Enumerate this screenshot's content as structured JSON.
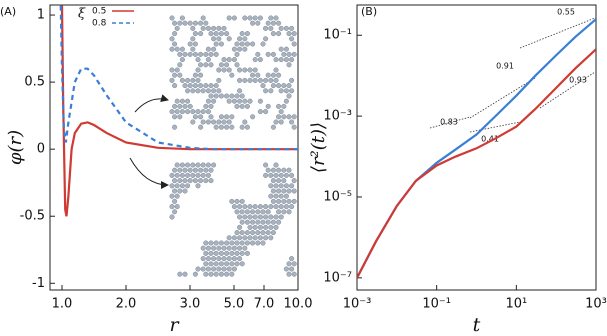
{
  "chart_data": [
    {
      "type": "line",
      "panel_label": "(A)",
      "xlabel": "r",
      "ylabel": "φ(r)",
      "legend_title": "ξ",
      "legend": "upper left",
      "xlim": [
        0.81,
        10
      ],
      "ylim": [
        -1.05,
        1.075
      ],
      "xticks": [
        {
          "value": 1,
          "label": "1.0"
        },
        {
          "value": 2,
          "label": "2.0"
        },
        {
          "value": 3,
          "label": "3.0"
        },
        {
          "value": 5,
          "label": "5.0"
        },
        {
          "value": 7,
          "label": "7.0"
        },
        {
          "value": 10,
          "label": "10.0"
        }
      ],
      "yticks": [
        -1,
        -0.5,
        0,
        0.5,
        1
      ],
      "series": [
        {
          "name": "0.5",
          "color": "#d03a32",
          "dash": false,
          "x": [
            1.0,
            1.02,
            1.05,
            1.07,
            1.1,
            1.15,
            1.2,
            1.3,
            1.4,
            1.5,
            1.7,
            2.0,
            2.5,
            3,
            4,
            5,
            7,
            10
          ],
          "values": [
            1.07,
            0.3,
            -0.45,
            -0.5,
            -0.35,
            0,
            0.12,
            0.19,
            0.2,
            0.18,
            0.12,
            0.05,
            0.01,
            0,
            0,
            0,
            0,
            0
          ]
        },
        {
          "name": "0.8",
          "color": "#3a7fd5",
          "dash": true,
          "x": [
            0.98,
            1.0,
            1.03,
            1.06,
            1.1,
            1.2,
            1.3,
            1.4,
            1.5,
            1.7,
            2.0,
            2.5,
            3,
            4,
            5,
            7,
            10
          ],
          "values": [
            1.07,
            0.6,
            0.15,
            0.05,
            0.2,
            0.5,
            0.6,
            0.6,
            0.55,
            0.4,
            0.2,
            0.05,
            0.01,
            0,
            0,
            0,
            0
          ]
        }
      ]
    },
    {
      "type": "line",
      "panel_label": "(B)",
      "xlabel": "t",
      "ylabel": "⟨r²(t)⟩",
      "log_x": true,
      "log_y": true,
      "xlim": [
        0.001,
        1000
      ],
      "ylim": [
        5e-08,
        0.56
      ],
      "xticks": [
        {
          "value": 0.001,
          "label": "10⁻³"
        },
        {
          "value": 0.1,
          "label": "10⁻¹"
        },
        {
          "value": 10,
          "label": "10¹"
        },
        {
          "value": 1000,
          "label": "10³"
        }
      ],
      "yticks": [
        {
          "value": 1e-07,
          "label": "10⁻⁷"
        },
        {
          "value": 1e-05,
          "label": "10⁻⁵"
        },
        {
          "value": 0.001,
          "label": "10⁻³"
        },
        {
          "value": 0.1,
          "label": "10⁻¹"
        }
      ],
      "annotations": [
        "0.55",
        "0.91",
        "0.93",
        "0.83",
        "0.41"
      ],
      "series": [
        {
          "color": "#3a7fd5",
          "x": [
            0.001,
            0.003,
            0.01,
            0.03,
            0.1,
            0.3,
            1,
            3,
            10,
            30,
            100,
            300,
            1000
          ],
          "values": [
            1e-07,
            8e-07,
            6e-06,
            2.5e-05,
            7e-05,
            0.00015,
            0.00035,
            0.001,
            0.0032,
            0.01,
            0.032,
            0.09,
            0.25
          ]
        },
        {
          "color": "#d03a32",
          "x": [
            0.001,
            0.003,
            0.01,
            0.03,
            0.1,
            0.3,
            1,
            3,
            10,
            30,
            100,
            300,
            1000
          ],
          "values": [
            1e-07,
            8e-07,
            6e-06,
            2.5e-05,
            6e-05,
            0.0001,
            0.00016,
            0.00028,
            0.00055,
            0.0015,
            0.005,
            0.015,
            0.045
          ]
        }
      ]
    }
  ]
}
